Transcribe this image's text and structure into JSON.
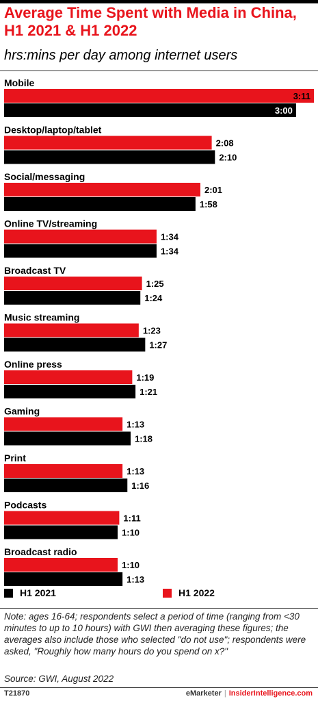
{
  "chart_data": {
    "type": "bar",
    "orientation": "horizontal",
    "title": "Average Time Spent with Media in China, H1 2021 & H1 2022",
    "subtitle": "hrs:mins per day among internet users",
    "categories": [
      "Mobile",
      "Desktop/laptop/tablet",
      "Social/messaging",
      "Online TV/streaming",
      "Broadcast TV",
      "Music streaming",
      "Online press",
      "Gaming",
      "Print",
      "Podcasts",
      "Broadcast radio"
    ],
    "series": [
      {
        "name": "H1 2022",
        "color": "#e8141c",
        "values": [
          191,
          128,
          121,
          94,
          85,
          83,
          79,
          73,
          73,
          71,
          70
        ],
        "labels": [
          "3:11",
          "2:08",
          "2:01",
          "1:34",
          "1:25",
          "1:23",
          "1:19",
          "1:13",
          "1:13",
          "1:11",
          "1:10"
        ]
      },
      {
        "name": "H1 2021",
        "color": "#000000",
        "values": [
          180,
          130,
          118,
          94,
          84,
          87,
          81,
          78,
          76,
          70,
          73
        ],
        "labels": [
          "3:00",
          "2:10",
          "1:58",
          "1:34",
          "1:24",
          "1:27",
          "1:21",
          "1:18",
          "1:16",
          "1:10",
          "1:13"
        ]
      }
    ],
    "value_unit": "minutes",
    "xlim": [
      0,
      191
    ],
    "grid": false,
    "legend_position": "bottom"
  },
  "legend": {
    "items": [
      {
        "label": "H1 2021",
        "color": "#000000"
      },
      {
        "label": "H1 2022",
        "color": "#e8141c"
      }
    ]
  },
  "note": "Note: ages 16-64; respondents select a period of time (ranging from <30 minutes to up to 10 hours) with GWI then averaging these figures; the averages also include those who selected \"do not use\"; respondents were asked, \"Roughly how many hours do you spend on x?\"",
  "source": "Source:  GWI, August 2022",
  "footer": {
    "id": "T21870",
    "brand_left": "eMarketer",
    "separator": "|",
    "brand_right": "InsiderIntelligence.com"
  }
}
